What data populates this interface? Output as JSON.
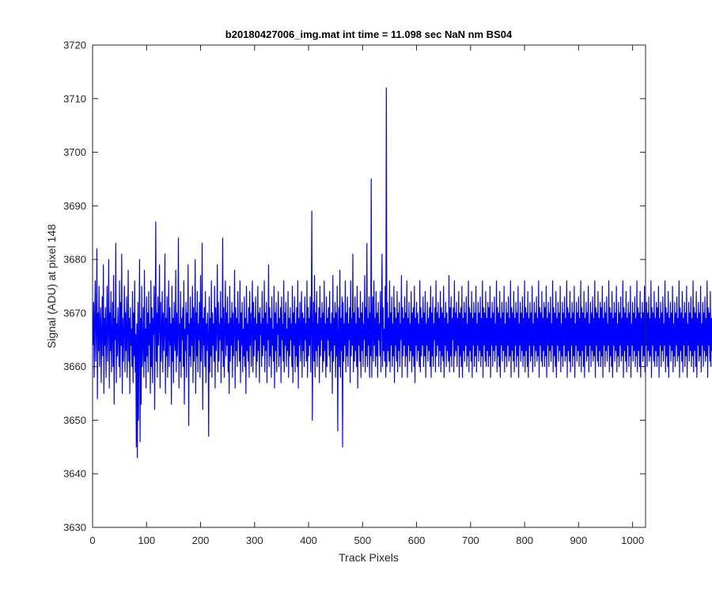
{
  "chart_data": {
    "type": "line",
    "title": "b20180427006_img.mat int time = 11.098 sec  NaN nm BS04",
    "xlabel": "Track Pixels",
    "ylabel": "Signal (ADU) at pixel 148",
    "xlim": [
      0,
      1024
    ],
    "ylim": [
      3630,
      3720
    ],
    "x_ticks": [
      0,
      100,
      200,
      300,
      400,
      500,
      600,
      700,
      800,
      900,
      1000
    ],
    "y_ticks": [
      3630,
      3640,
      3650,
      3660,
      3670,
      3680,
      3690,
      3700,
      3710,
      3720
    ],
    "grid": false,
    "line_color": "#0000ff",
    "series": [
      {
        "x_start": 1,
        "x_step": 1,
        "baseline": 3666,
        "noise_amplitude": 6.5,
        "values": [
          3664,
          3672,
          3658,
          3669,
          3676,
          3661,
          3667,
          3682,
          3654,
          3670,
          3663,
          3675,
          3660,
          3668,
          3671,
          3657,
          3666,
          3673,
          3662,
          3679,
          3655,
          3669,
          3664,
          3671,
          3658,
          3667,
          3675,
          3661,
          3668,
          3680,
          3656,
          3670,
          3663,
          3674,
          3659,
          3666,
          3672,
          3660,
          3677,
          3653,
          3669,
          3665,
          3683,
          3657,
          3668,
          3662,
          3671,
          3666,
          3660,
          3676,
          3658,
          3672,
          3664,
          3681,
          3655,
          3669,
          3661,
          3667,
          3675,
          3659,
          3670,
          3663,
          3673,
          3658,
          3666,
          3678,
          3661,
          3669,
          3655,
          3671,
          3664,
          3667,
          3660,
          3674,
          3657,
          3670,
          3662,
          3676,
          3659,
          3666,
          3645,
          3668,
          3643,
          3672,
          3650,
          3665,
          3680,
          3646,
          3669,
          3653,
          3675,
          3660,
          3664,
          3671,
          3658,
          3678,
          3661,
          3667,
          3656,
          3673,
          3662,
          3670,
          3659,
          3674,
          3664,
          3668,
          3655,
          3676,
          3660,
          3671,
          3657,
          3669,
          3666,
          3675,
          3652,
          3667,
          3687,
          3661,
          3670,
          3658,
          3673,
          3664,
          3668,
          3679,
          3656,
          3672,
          3661,
          3666,
          3674,
          3659,
          3670,
          3663,
          3667,
          3681,
          3655,
          3669,
          3662,
          3673,
          3658,
          3666,
          3676,
          3660,
          3671,
          3664,
          3668,
          3653,
          3675,
          3661,
          3669,
          3657,
          3672,
          3665,
          3663,
          3678,
          3659,
          3670,
          3662,
          3667,
          3684,
          3656,
          3668,
          3661,
          3674,
          3658,
          3669,
          3665,
          3671,
          3660,
          3676,
          3653,
          3667,
          3663,
          3672,
          3658,
          3670,
          3666,
          3679,
          3649,
          3668,
          3662,
          3673,
          3660,
          3669,
          3664,
          3675,
          3657,
          3671,
          3661,
          3667,
          3680,
          3655,
          3670,
          3662,
          3674,
          3659,
          3668,
          3665,
          3672,
          3658,
          3677,
          3661,
          3666,
          3683,
          3652,
          3669,
          3664,
          3671,
          3660,
          3674,
          3657,
          3668,
          3663,
          3670,
          3666,
          3647,
          3673,
          3659,
          3669,
          3662,
          3676,
          3658,
          3670,
          3664,
          3668,
          3661,
          3675,
          3656,
          3671,
          3663,
          3667,
          3679,
          3659,
          3672,
          3661,
          3668,
          3665,
          3674,
          3657,
          3669,
          3663,
          3684,
          3660,
          3671,
          3658,
          3667,
          3676,
          3662,
          3670,
          3664,
          3673,
          3659,
          3668,
          3655,
          3675,
          3661,
          3669,
          3664,
          3672,
          3658,
          3670,
          3662,
          3667,
          3678,
          3656,
          3671,
          3663,
          3669,
          3660,
          3674,
          3665,
          3668,
          3661,
          3676,
          3657,
          3670,
          3664,
          3672,
          3659,
          3667,
          3662,
          3673,
          3660,
          3669,
          3655,
          3675,
          3663,
          3668,
          3661,
          3671,
          3658,
          3674,
          3664,
          3670,
          3660,
          3667,
          3676,
          3659,
          3672,
          3662,
          3669,
          3665,
          3673,
          3658,
          3668,
          3661,
          3675,
          3663,
          3670,
          3657,
          3671,
          3666,
          3668,
          3660,
          3674,
          3662,
          3669,
          3664,
          3676,
          3659,
          3670,
          3663,
          3672,
          3657,
          3668,
          3665,
          3679,
          3660,
          3671,
          3662,
          3669,
          3658,
          3673,
          3664,
          3667,
          3661,
          3675,
          3656,
          3670,
          3663,
          3672,
          3659,
          3668,
          3666,
          3674,
          3660,
          3669,
          3662,
          3671,
          3657,
          3673,
          3665,
          3668,
          3661,
          3676,
          3659,
          3670,
          3664,
          3672,
          3660,
          3667,
          3663,
          3674,
          3658,
          3669,
          3662,
          3671,
          3665,
          3668,
          3660,
          3675,
          3657,
          3670,
          3664,
          3673,
          3659,
          3668,
          3662,
          3671,
          3660,
          3676,
          3656,
          3669,
          3664,
          3672,
          3661,
          3667,
          3674,
          3658,
          3670,
          3663,
          3669,
          3660,
          3673,
          3665,
          3668,
          3661,
          3676,
          3658,
          3671,
          3662,
          3669,
          3664,
          3673,
          3659,
          3668,
          3689,
          3650,
          3666,
          3672,
          3661,
          3677,
          3658,
          3670,
          3663,
          3674,
          3660,
          3668,
          3664,
          3671,
          3657,
          3675,
          3662,
          3669,
          3665,
          3672,
          3659,
          3670,
          3661,
          3676,
          3663,
          3668,
          3658,
          3673,
          3660,
          3669,
          3665,
          3671,
          3662,
          3674,
          3659,
          3668,
          3663,
          3670,
          3655,
          3677,
          3661,
          3669,
          3664,
          3672,
          3658,
          3670,
          3662,
          3675,
          3648,
          3666,
          3671,
          3660,
          3678,
          3658,
          3669,
          3663,
          3673,
          3645,
          3672,
          3661,
          3668,
          3664,
          3676,
          3659,
          3670,
          3662,
          3673,
          3660,
          3668,
          3665,
          3671,
          3657,
          3676,
          3662,
          3669,
          3664,
          3681,
          3659,
          3670,
          3661,
          3673,
          3663,
          3668,
          3660,
          3675,
          3656,
          3671,
          3664,
          3669,
          3661,
          3674,
          3658,
          3670,
          3663,
          3672,
          3660,
          3668,
          3665,
          3677,
          3659,
          3671,
          3662,
          3683,
          3660,
          3669,
          3664,
          3673,
          3658,
          3670,
          3662,
          3695,
          3658,
          3667,
          3673,
          3661,
          3676,
          3664,
          3669,
          3660,
          3674,
          3662,
          3670,
          3658,
          3672,
          3665,
          3668,
          3662,
          3674,
          3659,
          3669,
          3681,
          3660,
          3671,
          3663,
          3667,
          3661,
          3675,
          3658,
          3712,
          3660,
          3672,
          3663,
          3669,
          3661,
          3676,
          3659,
          3670,
          3664,
          3673,
          3660,
          3668,
          3662,
          3675,
          3657,
          3671,
          3664,
          3669,
          3661,
          3674,
          3659,
          3670,
          3663,
          3672,
          3660,
          3668,
          3665,
          3677,
          3658,
          3671,
          3662,
          3669,
          3664,
          3673,
          3660,
          3670,
          3662,
          3676,
          3658,
          3669,
          3664,
          3672,
          3661,
          3668,
          3663,
          3674,
          3659,
          3670,
          3662,
          3671,
          3660,
          3675,
          3657,
          3669,
          3664,
          3672,
          3661,
          3670,
          3663,
          3668,
          3660,
          3676,
          3659,
          3671,
          3662,
          3669,
          3664,
          3673,
          3660,
          3670,
          3662,
          3674,
          3658,
          3668,
          3664,
          3672,
          3661,
          3669,
          3663,
          3671,
          3660,
          3675,
          3658,
          3670,
          3662,
          3673,
          3660,
          3668,
          3665,
          3671,
          3659,
          3676,
          3662,
          3670,
          3664,
          3672,
          3660,
          3669,
          3663,
          3674,
          3659,
          3671,
          3662,
          3670,
          3661,
          3675,
          3658,
          3669,
          3664,
          3672,
          3660,
          3670,
          3663,
          3668,
          3661,
          3677,
          3659,
          3671,
          3662,
          3673,
          3660,
          3669,
          3665,
          3671,
          3659,
          3676,
          3662,
          3670,
          3663,
          3672,
          3660,
          3669,
          3664,
          3674,
          3658,
          3670,
          3662,
          3671,
          3660,
          3675,
          3658,
          3669,
          3663,
          3672,
          3661,
          3670,
          3664,
          3673,
          3660,
          3668,
          3662,
          3676,
          3659,
          3671,
          3663,
          3670,
          3661,
          3674,
          3658,
          3669,
          3664,
          3672,
          3660,
          3670,
          3662,
          3675,
          3659,
          3668,
          3664,
          3672,
          3661,
          3670,
          3663,
          3673,
          3660,
          3669,
          3662,
          3676,
          3658,
          3671,
          3664,
          3670,
          3661,
          3674,
          3660,
          3669,
          3663,
          3672,
          3660,
          3671,
          3662,
          3675,
          3658,
          3669,
          3664,
          3672,
          3660,
          3670,
          3663,
          3673,
          3661,
          3668,
          3664,
          3676,
          3659,
          3671,
          3662,
          3670,
          3660,
          3674,
          3658,
          3669,
          3664,
          3672,
          3661,
          3670,
          3663,
          3675,
          3659,
          3668,
          3662,
          3672,
          3660,
          3670,
          3664,
          3673,
          3661,
          3669,
          3662,
          3676,
          3658,
          3671,
          3663,
          3670,
          3661,
          3674,
          3659,
          3669,
          3664,
          3672,
          3660,
          3670,
          3662,
          3675,
          3658,
          3668,
          3664,
          3672,
          3661,
          3670,
          3663,
          3673,
          3660,
          3669,
          3662,
          3676,
          3659,
          3671,
          3663,
          3670,
          3660,
          3674,
          3658,
          3669,
          3664,
          3672,
          3661,
          3670,
          3662,
          3675,
          3659,
          3668,
          3664,
          3672,
          3660,
          3670,
          3663,
          3673,
          3661,
          3669,
          3662,
          3676,
          3658,
          3671,
          3664,
          3670,
          3661,
          3674,
          3660,
          3669,
          3663,
          3672,
          3660,
          3671,
          3662,
          3675,
          3658,
          3669,
          3664,
          3672,
          3660,
          3670,
          3663,
          3673,
          3661,
          3668,
          3664,
          3676,
          3659,
          3671,
          3662,
          3670,
          3660,
          3674,
          3658,
          3669,
          3664,
          3672,
          3661,
          3670,
          3663,
          3675,
          3659,
          3668,
          3662,
          3672,
          3660,
          3670,
          3664,
          3673,
          3661,
          3669,
          3662,
          3676,
          3658,
          3671,
          3663,
          3670,
          3661,
          3674,
          3659,
          3669,
          3664,
          3672,
          3660,
          3670,
          3662,
          3675,
          3658,
          3668,
          3664,
          3672,
          3661,
          3670,
          3663,
          3673,
          3660,
          3669,
          3662,
          3676,
          3659,
          3671,
          3663,
          3670,
          3660,
          3674,
          3658,
          3669,
          3664,
          3672,
          3661,
          3670,
          3662,
          3675,
          3659,
          3668,
          3664,
          3672,
          3660,
          3670,
          3663,
          3673,
          3661,
          3669,
          3662,
          3676,
          3658,
          3671,
          3664,
          3670,
          3661,
          3674,
          3660,
          3669,
          3663,
          3672,
          3660,
          3671,
          3662,
          3675,
          3658,
          3669,
          3664,
          3672,
          3660,
          3670,
          3663,
          3673,
          3661,
          3668,
          3664,
          3676,
          3659,
          3671,
          3662,
          3670,
          3660,
          3674,
          3658,
          3669,
          3664,
          3672,
          3661,
          3670,
          3663,
          3675,
          3659,
          3668,
          3662,
          3672,
          3660,
          3670,
          3664,
          3673,
          3661,
          3669,
          3662,
          3676,
          3658,
          3671,
          3663,
          3670,
          3661,
          3674,
          3659,
          3669,
          3664,
          3672,
          3660,
          3670,
          3662,
          3675,
          3658,
          3668,
          3664,
          3672,
          3661,
          3670,
          3663,
          3673,
          3660,
          3669,
          3662,
          3676,
          3659,
          3671,
          3663,
          3670,
          3660,
          3674,
          3658,
          3669,
          3664,
          3672,
          3661,
          3670,
          3662,
          3675,
          3659,
          3668,
          3664,
          3672,
          3660,
          3670,
          3663,
          3673,
          3661,
          3669,
          3662,
          3676,
          3658,
          3671,
          3664,
          3670,
          3661,
          3674,
          3660,
          3669,
          3663,
          3672,
          3660,
          3671,
          3662,
          3675,
          3658,
          3669,
          3664,
          3672,
          3660,
          3670,
          3663,
          3673,
          3661,
          3668,
          3664,
          3676,
          3659,
          3671,
          3662,
          3670,
          3660,
          3674,
          3658,
          3669,
          3664,
          3672,
          3661,
          3670,
          3663,
          3675,
          3659,
          3668,
          3662,
          3672,
          3660,
          3670,
          3664,
          3673,
          3661,
          3669,
          3662,
          3676,
          3658,
          3671,
          3663,
          3670,
          3661,
          3674,
          3659,
          3669,
          3664,
          3672,
          3660,
          3670,
          3662,
          3675,
          3658,
          3668,
          3664,
          3672,
          3661,
          3670,
          3663,
          3673,
          3660,
          3669,
          3662,
          3676,
          3659,
          3671,
          3663,
          3670,
          3660,
          3674,
          3658,
          3669,
          3664,
          3672,
          3661,
          3670,
          3662,
          3675,
          3659,
          3668,
          3664,
          3672,
          3660,
          3670,
          3663,
          3673,
          3661,
          3669,
          3662,
          3676,
          3658,
          3671,
          3664,
          3670,
          3661,
          3674,
          3660,
          3669,
          3663,
          3672,
          3660
        ]
      }
    ]
  }
}
